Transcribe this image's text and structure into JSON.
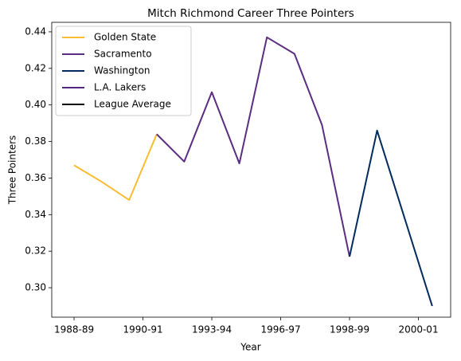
{
  "chart_data": {
    "type": "line",
    "title": "Mitch Richmond Career Three Pointers",
    "xlabel": "Year",
    "ylabel": "Three Pointers",
    "series": [
      {
        "name": "Golden State",
        "color": "#f9bc32",
        "x": [
          0,
          1,
          2,
          3
        ],
        "values": [
          0.367,
          0.358,
          0.348,
          0.384
        ]
      },
      {
        "name": "Sacramento",
        "color": "#5a2d81",
        "x": [
          3,
          4,
          5,
          6,
          7,
          8,
          9,
          10
        ],
        "values": [
          0.384,
          0.369,
          0.407,
          0.368,
          0.437,
          0.428,
          0.389,
          0.317
        ]
      },
      {
        "name": "Washington",
        "color": "#002b5c",
        "x": [
          10,
          11,
          12,
          13
        ],
        "values": [
          0.317,
          0.386,
          0.338,
          0.29
        ]
      },
      {
        "name": "L.A. Lakers",
        "color": "#552583",
        "x": [
          13
        ],
        "values": [
          0.29
        ]
      },
      {
        "name": "League Average",
        "color": "#000000",
        "x": [],
        "values": []
      }
    ],
    "xlim": [
      -0.81,
      13.67
    ],
    "xticks": [
      {
        "value": 0,
        "label": "1988-89"
      },
      {
        "value": 2.5,
        "label": "1990-91"
      },
      {
        "value": 5,
        "label": "1993-94"
      },
      {
        "value": 7.5,
        "label": "1996-97"
      },
      {
        "value": 10,
        "label": "1998-99"
      },
      {
        "value": 12.5,
        "label": "2000-01"
      }
    ],
    "ylim": [
      0.2839,
      0.4452
    ],
    "yticks": [
      {
        "value": 0.3,
        "label": "0.30"
      },
      {
        "value": 0.32,
        "label": "0.32"
      },
      {
        "value": 0.34,
        "label": "0.34"
      },
      {
        "value": 0.36,
        "label": "0.36"
      },
      {
        "value": 0.38,
        "label": "0.38"
      },
      {
        "value": 0.4,
        "label": "0.40"
      },
      {
        "value": 0.42,
        "label": "0.42"
      },
      {
        "value": 0.44,
        "label": "0.44"
      }
    ],
    "legend": "upper left"
  }
}
